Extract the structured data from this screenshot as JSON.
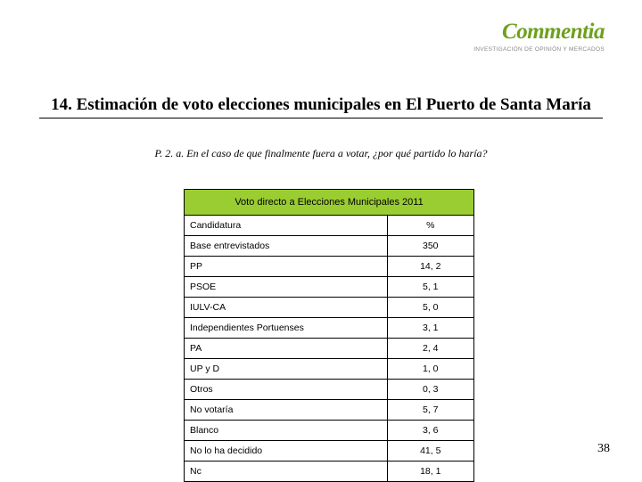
{
  "logo": {
    "main": "Commentia",
    "sub": "INVESTIGACIÓN DE OPINIÓN Y MERCADOS"
  },
  "title": "14. Estimación de voto elecciones municipales en El Puerto de Santa María",
  "subtitle": "P. 2. a. En el caso de que finalmente fuera a votar, ¿por qué partido lo haría?",
  "table": {
    "header": "Voto directo a Elecciones Municipales 2011",
    "col_label": "Candidatura",
    "col_value": "%",
    "header_bg": "#9acd32",
    "rows": [
      {
        "label": "Base entrevistados",
        "value": "350"
      },
      {
        "label": "PP",
        "value": "14, 2"
      },
      {
        "label": "PSOE",
        "value": "5, 1"
      },
      {
        "label": "IULV-CA",
        "value": "5, 0"
      },
      {
        "label": "Independientes Portuenses",
        "value": "3, 1"
      },
      {
        "label": "PA",
        "value": "2, 4"
      },
      {
        "label": "UP y D",
        "value": "1, 0"
      },
      {
        "label": "Otros",
        "value": "0, 3"
      },
      {
        "label": "No votaría",
        "value": "5, 7"
      },
      {
        "label": "Blanco",
        "value": "3, 6"
      },
      {
        "label": "No lo ha decidido",
        "value": "41, 5"
      },
      {
        "label": "Nc",
        "value": "18, 1"
      }
    ]
  },
  "page_number": "38"
}
